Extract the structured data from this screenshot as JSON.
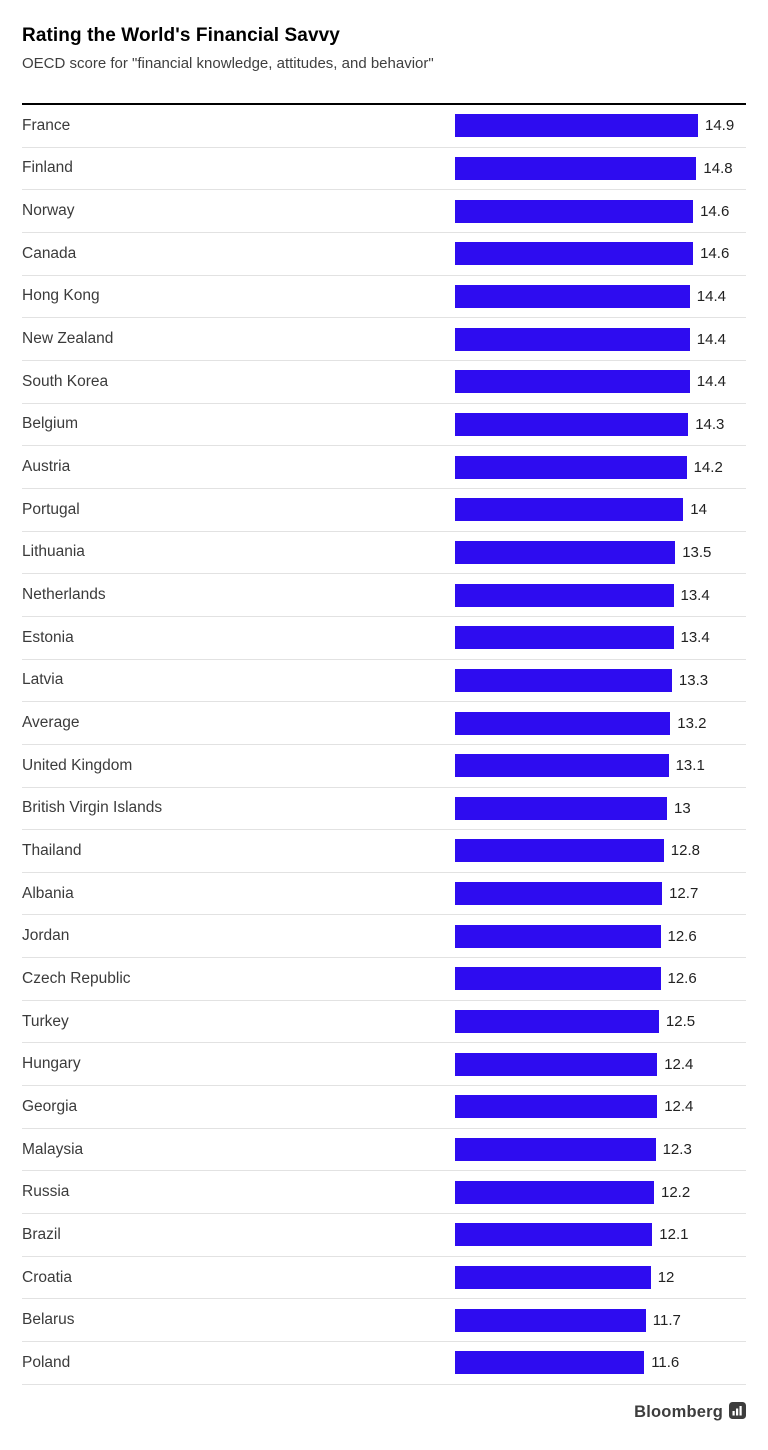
{
  "header": {
    "title": "Rating the World's Financial Savvy",
    "subtitle": "OECD score for \"financial knowledge, attitudes, and behavior\""
  },
  "footer": {
    "brand": "Bloomberg"
  },
  "colors": {
    "bar": "#2e0cf0",
    "separator": "#e2e2e2",
    "top_rule": "#000000",
    "title_text": "#000000",
    "label_text": "#3b3b3b",
    "value_text": "#222222",
    "brand_text": "#3d3d3d"
  },
  "chart_data": {
    "type": "bar",
    "orientation": "horizontal",
    "title": "Rating the World's Financial Savvy",
    "subtitle": "OECD score for \"financial knowledge, attitudes, and behavior\"",
    "xlabel": "",
    "ylabel": "",
    "xlim": [
      0,
      14.9
    ],
    "grid": false,
    "legend": false,
    "value_labels": true,
    "categories": [
      "France",
      "Finland",
      "Norway",
      "Canada",
      "Hong Kong",
      "New Zealand",
      "South Korea",
      "Belgium",
      "Austria",
      "Portugal",
      "Lithuania",
      "Netherlands",
      "Estonia",
      "Latvia",
      "Average",
      "United Kingdom",
      "British Virgin Islands",
      "Thailand",
      "Albania",
      "Jordan",
      "Czech Republic",
      "Turkey",
      "Hungary",
      "Georgia",
      "Malaysia",
      "Russia",
      "Brazil",
      "Croatia",
      "Belarus",
      "Poland"
    ],
    "values": [
      14.9,
      14.8,
      14.6,
      14.6,
      14.4,
      14.4,
      14.4,
      14.3,
      14.2,
      14,
      13.5,
      13.4,
      13.4,
      13.3,
      13.2,
      13.1,
      13,
      12.8,
      12.7,
      12.6,
      12.6,
      12.5,
      12.4,
      12.4,
      12.3,
      12.2,
      12.1,
      12,
      11.7,
      11.6
    ]
  }
}
